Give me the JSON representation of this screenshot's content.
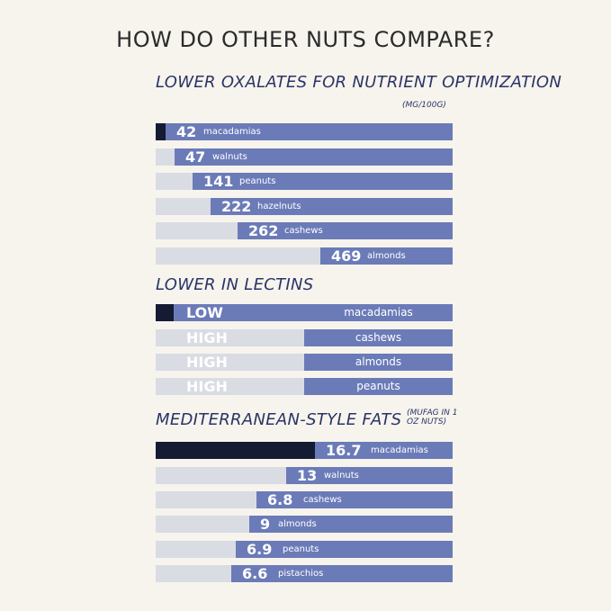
{
  "title": "HOW DO OTHER NUTS COMPARE?",
  "chart_data": [
    {
      "type": "bar",
      "title": "LOWER OXALATES FOR NUTRIENT OPTIMIZATION",
      "unit": "(MG/100G)",
      "categories": [
        "macadamias",
        "walnuts",
        "peanuts",
        "hazelnuts",
        "cashews",
        "almonds"
      ],
      "values": [
        42,
        47,
        141,
        222,
        262,
        469
      ],
      "labels": [
        "42",
        "47",
        "141",
        "222",
        "262",
        "469"
      ]
    },
    {
      "type": "bar",
      "title": "LOWER IN LECTINS",
      "categories": [
        "macadamias",
        "cashews",
        "almonds",
        "peanuts"
      ],
      "labels": [
        "LOW",
        "HIGH",
        "HIGH",
        "HIGH"
      ]
    },
    {
      "type": "bar",
      "title": "MEDITERRANEAN-STYLE FATS",
      "unit": "(MUFAG IN 1 OZ NUTS)",
      "categories": [
        "macadamias",
        "walnuts",
        "cashews",
        "almonds",
        "peanuts",
        "pistachios"
      ],
      "values": [
        16.7,
        13,
        6.8,
        9,
        6.9,
        6.6
      ],
      "labels": [
        "16.7",
        "13",
        "6.8",
        "9",
        "6.9",
        "6.6"
      ]
    }
  ],
  "colors": {
    "highlight": "#141b33",
    "bar": "#6b7bb8",
    "track": "#d9dce3",
    "heading": "#2a3566"
  }
}
